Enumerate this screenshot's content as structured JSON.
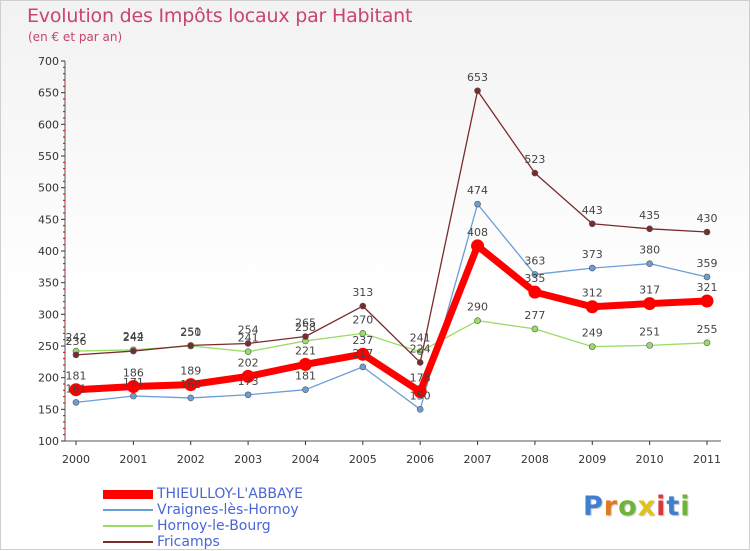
{
  "title": "Evolution des Impôts locaux par Habitant",
  "subtitle": "(en € et par an)",
  "logo_text": "Proxiti",
  "chart_data": {
    "type": "line",
    "title": "Evolution des Impôts locaux par Habitant",
    "subtitle": "(en € et par an)",
    "xlabel": "",
    "ylabel": "",
    "categories": [
      "2000",
      "2001",
      "2002",
      "2003",
      "2004",
      "2005",
      "2006",
      "2007",
      "2008",
      "2009",
      "2010",
      "2011"
    ],
    "ylim": [
      100,
      700
    ],
    "yticks": [
      100,
      150,
      200,
      250,
      300,
      350,
      400,
      450,
      500,
      550,
      600,
      650,
      700
    ],
    "grid": false,
    "legend_position": "bottom-left",
    "series": [
      {
        "name": "THIEULLOY-L'ABBAYE",
        "color": "#ff0000",
        "emphasis": true,
        "values": [
          181,
          186,
          189,
          202,
          221,
          237,
          178,
          408,
          335,
          312,
          317,
          321
        ]
      },
      {
        "name": "Vraignes-lès-Hornoy",
        "color": "#6b9ed6",
        "values": [
          161,
          171,
          168,
          173,
          181,
          217,
          150,
          474,
          363,
          373,
          380,
          359
        ]
      },
      {
        "name": "Hornoy-le-Bourg",
        "color": "#99dd66",
        "values": [
          242,
          244,
          250,
          241,
          258,
          270,
          241,
          290,
          277,
          249,
          251,
          255
        ]
      },
      {
        "name": "Fricamps",
        "color": "#7a2c2c",
        "values": [
          236,
          242,
          251,
          254,
          265,
          313,
          224,
          653,
          523,
          443,
          435,
          430
        ]
      }
    ]
  }
}
